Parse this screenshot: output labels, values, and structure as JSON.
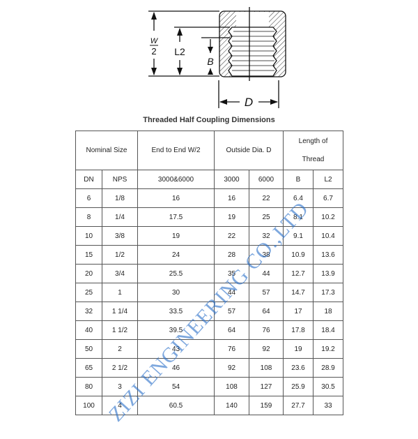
{
  "diagram": {
    "label_w": "W",
    "label_2": "2",
    "label_l2": "L2",
    "label_b": "B",
    "label_d": "D"
  },
  "title": "Threaded Half Coupling Dimensions",
  "headers": {
    "nominal": "Nominal Size",
    "end_to_end": "End to End W/2",
    "outside": "Outside Dia. D",
    "thread": "Length of Thread"
  },
  "subheaders": [
    "DN",
    "NPS",
    "3000&6000",
    "3000",
    "6000",
    "B",
    "L2"
  ],
  "rows": [
    [
      "6",
      "1/8",
      "16",
      "16",
      "22",
      "6.4",
      "6.7"
    ],
    [
      "8",
      "1/4",
      "17.5",
      "19",
      "25",
      "8.1",
      "10.2"
    ],
    [
      "10",
      "3/8",
      "19",
      "22",
      "32",
      "9.1",
      "10.4"
    ],
    [
      "15",
      "1/2",
      "24",
      "28",
      "38",
      "10.9",
      "13.6"
    ],
    [
      "20",
      "3/4",
      "25.5",
      "35",
      "44",
      "12.7",
      "13.9"
    ],
    [
      "25",
      "1",
      "30",
      "44",
      "57",
      "14.7",
      "17.3"
    ],
    [
      "32",
      "1 1/4",
      "33.5",
      "57",
      "64",
      "17",
      "18"
    ],
    [
      "40",
      "1 1/2",
      "39.5",
      "64",
      "76",
      "17.8",
      "18.4"
    ],
    [
      "50",
      "2",
      "43",
      "76",
      "92",
      "19",
      "19.2"
    ],
    [
      "65",
      "2 1/2",
      "46",
      "92",
      "108",
      "23.6",
      "28.9"
    ],
    [
      "80",
      "3",
      "54",
      "108",
      "127",
      "25.9",
      "30.5"
    ],
    [
      "100",
      "4",
      "60.5",
      "140",
      "159",
      "27.7",
      "33"
    ]
  ],
  "watermark": "ZIZI ENGINEERING CO.,LTD",
  "colors": {
    "watermark": "#286ec8"
  }
}
